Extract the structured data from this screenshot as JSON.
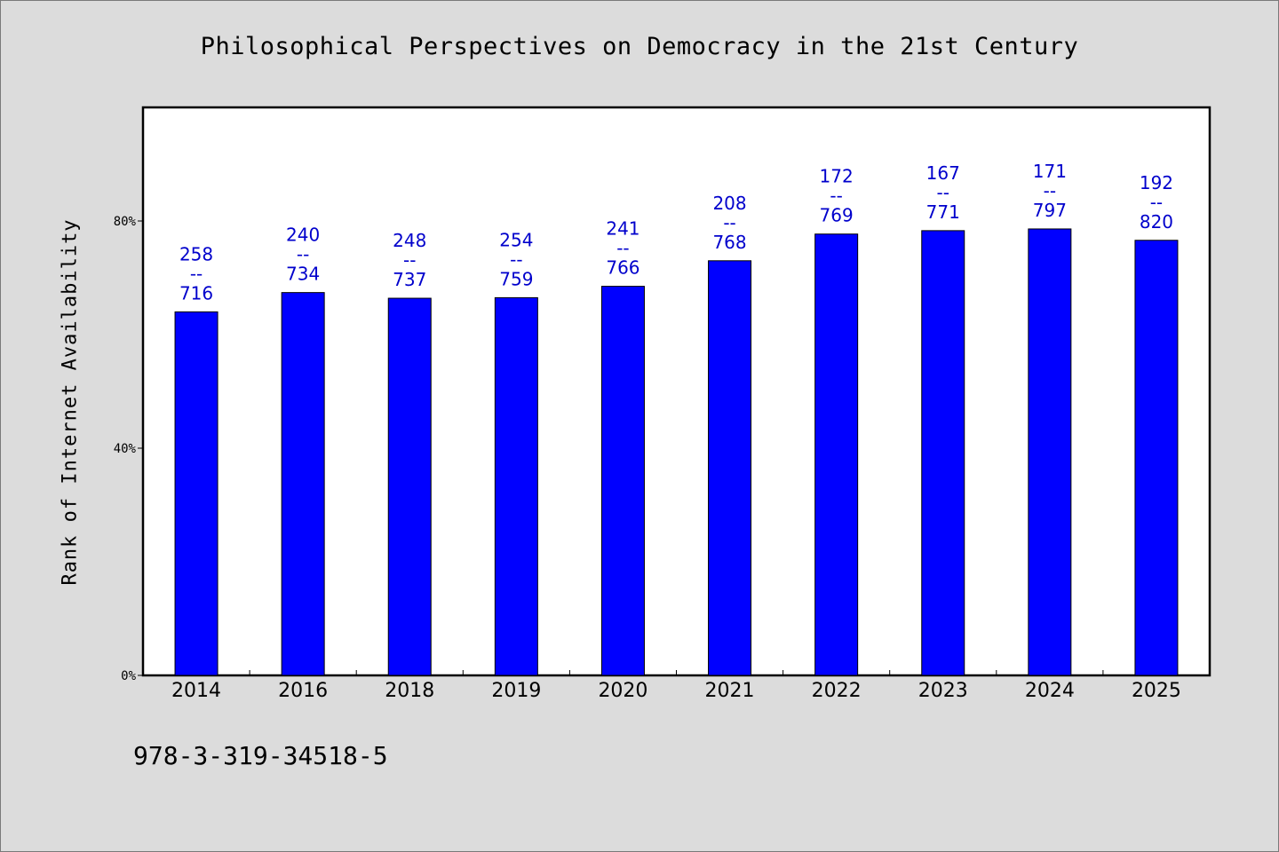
{
  "chart_data": {
    "type": "bar",
    "title": "Philosophical Perspectives on Democracy in the 21st Century",
    "xlabel": "",
    "ylabel": "Rank of Internet Availability",
    "ylim": [
      0,
      100
    ],
    "yticks": [
      0,
      40,
      80
    ],
    "ytick_labels": [
      "0%",
      "40%",
      "80%"
    ],
    "grid": false,
    "categories": [
      "2014",
      "2016",
      "2018",
      "2019",
      "2020",
      "2021",
      "2022",
      "2023",
      "2024",
      "2025"
    ],
    "values": [
      64.0,
      67.4,
      66.4,
      66.5,
      68.5,
      73.0,
      77.7,
      78.3,
      78.6,
      76.6
    ],
    "label_top": [
      "258",
      "240",
      "248",
      "254",
      "241",
      "208",
      "172",
      "167",
      "171",
      "192"
    ],
    "label_sep": "--",
    "label_bottom": [
      "716",
      "734",
      "737",
      "759",
      "766",
      "768",
      "769",
      "771",
      "797",
      "820"
    ],
    "bar_color": "#0000ff",
    "label_color": "#0000cc"
  },
  "footer": {
    "code": "978-3-319-34518-5"
  }
}
